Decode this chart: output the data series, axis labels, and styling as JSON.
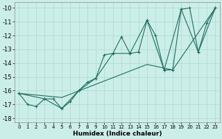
{
  "xlabel": "Humidex (Indice chaleur)",
  "background_color": "#cceee8",
  "line_color": "#1a6b5e",
  "grid_color": "#aad8d0",
  "xlim": [
    -0.5,
    23.5
  ],
  "ylim": [
    -18.3,
    -9.6
  ],
  "yticks": [
    -18,
    -17,
    -16,
    -15,
    -14,
    -13,
    -12,
    -11,
    -10
  ],
  "xticks": [
    0,
    1,
    2,
    3,
    4,
    5,
    6,
    7,
    8,
    9,
    10,
    11,
    12,
    13,
    14,
    15,
    16,
    17,
    18,
    19,
    20,
    21,
    22,
    23
  ],
  "series1_x": [
    0,
    1,
    2,
    3,
    4,
    5,
    6,
    7,
    8,
    9,
    10,
    11,
    12,
    13,
    14,
    15,
    16,
    17,
    18,
    19,
    20,
    21,
    22,
    23
  ],
  "series1_y": [
    -16.2,
    -17.0,
    -17.15,
    -16.6,
    -16.6,
    -17.3,
    -16.8,
    -16.0,
    -15.4,
    -15.1,
    -13.4,
    -13.3,
    -12.1,
    -13.3,
    -13.2,
    -10.9,
    -12.0,
    -14.5,
    -14.5,
    -10.1,
    -10.0,
    -13.2,
    -11.1,
    -10.0
  ],
  "series2_x": [
    0,
    3,
    5,
    7,
    9,
    11,
    13,
    15,
    17,
    19,
    21,
    23
  ],
  "series2_y": [
    -16.2,
    -16.6,
    -17.3,
    -16.0,
    -15.1,
    -13.3,
    -13.3,
    -10.9,
    -14.5,
    -10.1,
    -13.2,
    -10.0
  ],
  "series3_x": [
    0,
    5,
    10,
    15,
    18,
    23
  ],
  "series3_y": [
    -16.2,
    -16.5,
    -15.3,
    -14.1,
    -14.5,
    -10.0
  ]
}
